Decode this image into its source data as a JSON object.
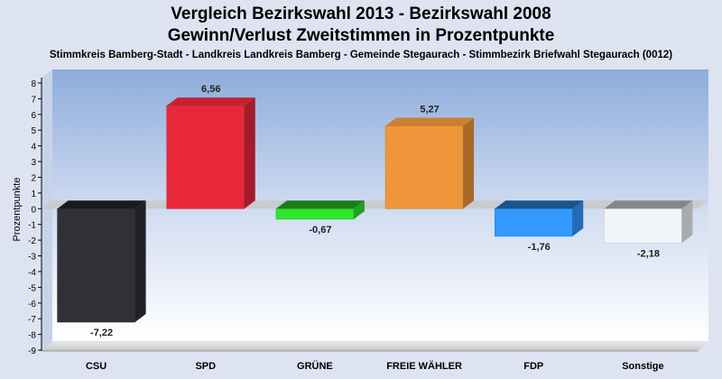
{
  "chart_data": {
    "type": "bar",
    "title": "Vergleich Bezirkswahl 2013 - Bezirkswahl 2008",
    "subtitle": "Gewinn/Verlust Zweitstimmen in Prozentpunkte",
    "caption": "Stimmkreis Bamberg-Stadt - Landkreis Landkreis Bamberg - Gemeinde Stegaurach - Stimmbezirk Briefwahl Stegaurach (0012)",
    "ylabel": "Prozentpunkte",
    "xlabel": "",
    "ylim": [
      -9,
      8
    ],
    "yticks": [
      "8",
      "7",
      "6",
      "5",
      "4",
      "3",
      "2",
      "1",
      "0",
      "-1",
      "-2",
      "-3",
      "-4",
      "-5",
      "-6",
      "-7",
      "-8",
      "-9"
    ],
    "categories": [
      "CSU",
      "SPD",
      "GRÜNE",
      "FREIE WÄHLER",
      "FDP",
      "Sonstige"
    ],
    "values": [
      -7.22,
      6.56,
      -0.67,
      5.27,
      -1.76,
      -2.18
    ],
    "value_labels": [
      "-7,22",
      "6,56",
      "-0,67",
      "5,27",
      "-1,76",
      "-2,18"
    ],
    "colors": [
      "#2f3136",
      "#e8283a",
      "#2ee62e",
      "#f0963a",
      "#3399ff",
      "#f2f5fa"
    ],
    "grid": false,
    "legend": "none"
  }
}
